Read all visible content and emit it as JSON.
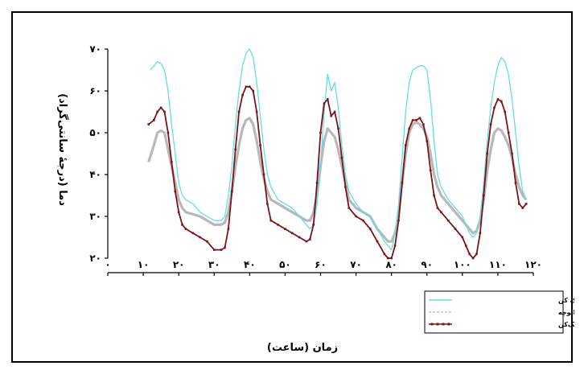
{
  "chart_data": {
    "type": "line",
    "xlabel": "زمان (ساعت)",
    "ylabel": "دما (درجهٔ سانتی‌گراد)",
    "xlim": [
      0,
      120
    ],
    "ylim": [
      20,
      70
    ],
    "xticks": [
      0,
      10,
      20,
      30,
      40,
      50,
      60,
      70,
      80,
      90,
      100,
      110,
      120
    ],
    "yticks": [
      20,
      30,
      40,
      50,
      60,
      70
    ],
    "xtick_labels": [
      "۰",
      "۱۰",
      "۲۰",
      "۳۰",
      "۴۰",
      "۵۰",
      "۶۰",
      "۷۰",
      "۸۰",
      "۹۰",
      "۱۰۰",
      "۱۱۰",
      "۱۲۰"
    ],
    "ytick_labels": [
      "۲۰",
      "۳۰",
      "۴۰",
      "۵۰",
      "۶۰",
      "۷۰"
    ],
    "grid": false,
    "legend_position": "bottom-right",
    "series": [
      {
        "name": "دمای هوای ورودی به خشک کن",
        "color": "#66dde3",
        "x": [
          12,
          13,
          14,
          15,
          16,
          17,
          18,
          19,
          20,
          21,
          22,
          24,
          26,
          28,
          30,
          32,
          33,
          34,
          35,
          36,
          37,
          38,
          39,
          40,
          41,
          42,
          43,
          44,
          45,
          46,
          48,
          50,
          52,
          54,
          56,
          57,
          58,
          59,
          60,
          61,
          62,
          63,
          64,
          65,
          66,
          67,
          68,
          70,
          72,
          74,
          76,
          78,
          79,
          80,
          81,
          82,
          83,
          84,
          85,
          86,
          87,
          88,
          89,
          90,
          91,
          92,
          93,
          94,
          96,
          98,
          100,
          101,
          102,
          103,
          104,
          105,
          106,
          107,
          108,
          109,
          110,
          111,
          112,
          113,
          114,
          115,
          116,
          117,
          118
        ],
        "values": [
          65,
          66,
          67,
          66.5,
          65,
          60,
          52,
          45,
          38,
          35,
          34,
          33,
          31,
          30,
          29,
          29,
          30,
          35,
          42,
          52,
          60,
          66,
          69,
          70,
          68,
          62,
          54,
          46,
          40,
          37,
          34,
          33,
          32,
          30,
          28,
          27,
          28,
          33,
          42,
          55,
          64,
          60,
          62,
          56,
          47,
          40,
          36,
          33,
          31,
          30,
          27,
          24,
          23,
          22,
          26,
          33,
          44,
          55,
          62,
          65,
          65.5,
          66,
          66,
          65,
          58,
          48,
          40,
          37,
          34,
          32,
          30,
          28,
          26,
          25,
          26,
          30,
          38,
          48,
          56,
          62,
          66,
          68,
          67,
          64,
          58,
          50,
          42,
          36,
          34
        ]
      },
      {
        "name": "دمای داخل اتوچه",
        "color": "#b8b8b8",
        "x": [
          11.5,
          13,
          14,
          15,
          16,
          17,
          18,
          19,
          20,
          21,
          22,
          24,
          26,
          28,
          30,
          32,
          33,
          34,
          35,
          36,
          37,
          38,
          39,
          40,
          41,
          42,
          43,
          44,
          45,
          46,
          48,
          50,
          52,
          54,
          56,
          57,
          58,
          59,
          60,
          61,
          62,
          63,
          64,
          65,
          66,
          67,
          68,
          70,
          72,
          74,
          76,
          78,
          79,
          80,
          81,
          82,
          83,
          84,
          85,
          86,
          87,
          88,
          89,
          90,
          91,
          92,
          93,
          94,
          96,
          98,
          100,
          101,
          102,
          103,
          104,
          105,
          106,
          107,
          108,
          109,
          110,
          111,
          112,
          113,
          114,
          115,
          116,
          117,
          118
        ],
        "values": [
          43,
          47,
          50,
          50.5,
          50,
          46,
          42,
          38,
          34,
          32,
          31,
          30.5,
          30,
          29,
          28,
          28,
          28.5,
          31,
          36,
          42,
          47,
          51,
          53,
          53.5,
          52,
          48,
          43,
          39,
          36,
          34,
          33,
          32,
          31,
          30,
          29,
          29,
          31,
          35,
          42,
          48,
          51,
          50,
          49,
          46,
          42,
          38,
          34,
          32,
          31,
          30,
          27,
          25,
          24,
          24,
          26,
          30,
          38,
          45,
          50,
          52,
          52.5,
          52,
          51,
          49,
          45,
          40,
          37,
          35,
          33,
          31,
          29,
          28,
          27,
          26,
          26.5,
          29,
          34,
          41,
          46,
          50,
          51,
          50.5,
          49,
          47,
          44,
          40,
          37,
          35,
          34
        ]
      },
      {
        "name": "دمای هوای خروجی خشک‌کن",
        "color": "#7a1418",
        "x": [
          11.5,
          13,
          14,
          15,
          16,
          17,
          18,
          19,
          20,
          21,
          22,
          24,
          26,
          28,
          30,
          32,
          33,
          34,
          35,
          36,
          37,
          38,
          39,
          40,
          41,
          42,
          43,
          44,
          45,
          46,
          48,
          50,
          52,
          54,
          56,
          57,
          58,
          59,
          60,
          61,
          62,
          63,
          64,
          65,
          66,
          67,
          68,
          70,
          72,
          74,
          76,
          78,
          79,
          80,
          81,
          82,
          83,
          84,
          85,
          86,
          87,
          88,
          89,
          90,
          91,
          92,
          93,
          94,
          96,
          98,
          100,
          101,
          102,
          103,
          104,
          105,
          106,
          107,
          108,
          109,
          110,
          111,
          112,
          113,
          114,
          115,
          116,
          117,
          118
        ],
        "values": [
          52,
          53,
          55,
          56,
          55,
          50,
          43,
          36,
          31,
          28,
          27,
          26,
          25,
          24,
          22,
          22,
          22.5,
          27,
          36,
          46,
          55,
          59,
          61,
          61,
          60,
          55,
          47,
          40,
          33,
          29,
          28,
          27,
          26,
          25,
          24,
          24.5,
          28,
          38,
          50,
          57,
          58,
          54,
          55,
          51,
          44,
          37,
          32,
          30,
          29,
          27,
          24,
          21,
          20,
          20,
          23,
          29,
          38,
          47,
          51,
          53,
          53,
          53.5,
          52,
          48,
          41,
          35,
          32,
          31,
          29,
          27,
          25,
          23,
          21,
          20,
          21,
          26,
          35,
          45,
          52,
          56,
          58,
          57.5,
          55,
          50,
          45,
          38,
          33,
          32,
          33
        ]
      }
    ]
  }
}
